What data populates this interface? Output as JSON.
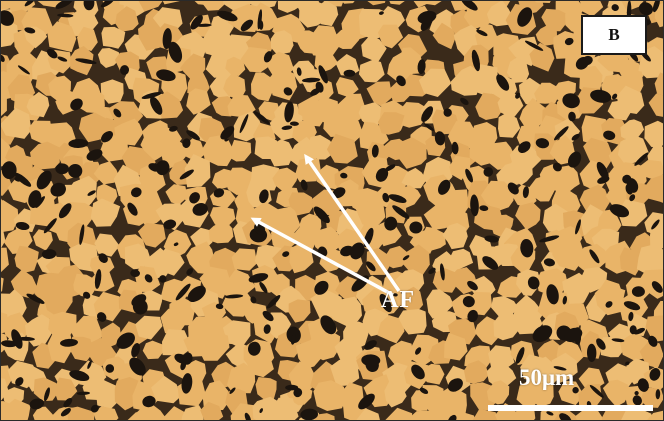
{
  "image": {
    "panel_label": "B",
    "phase_label": "AF",
    "scale_bar_label": "50μm",
    "colors": {
      "matrix": "#e9b468",
      "boundary": "#3a2a1a",
      "dark_phase": "#1b140e",
      "annotation": "#ffffff"
    }
  }
}
